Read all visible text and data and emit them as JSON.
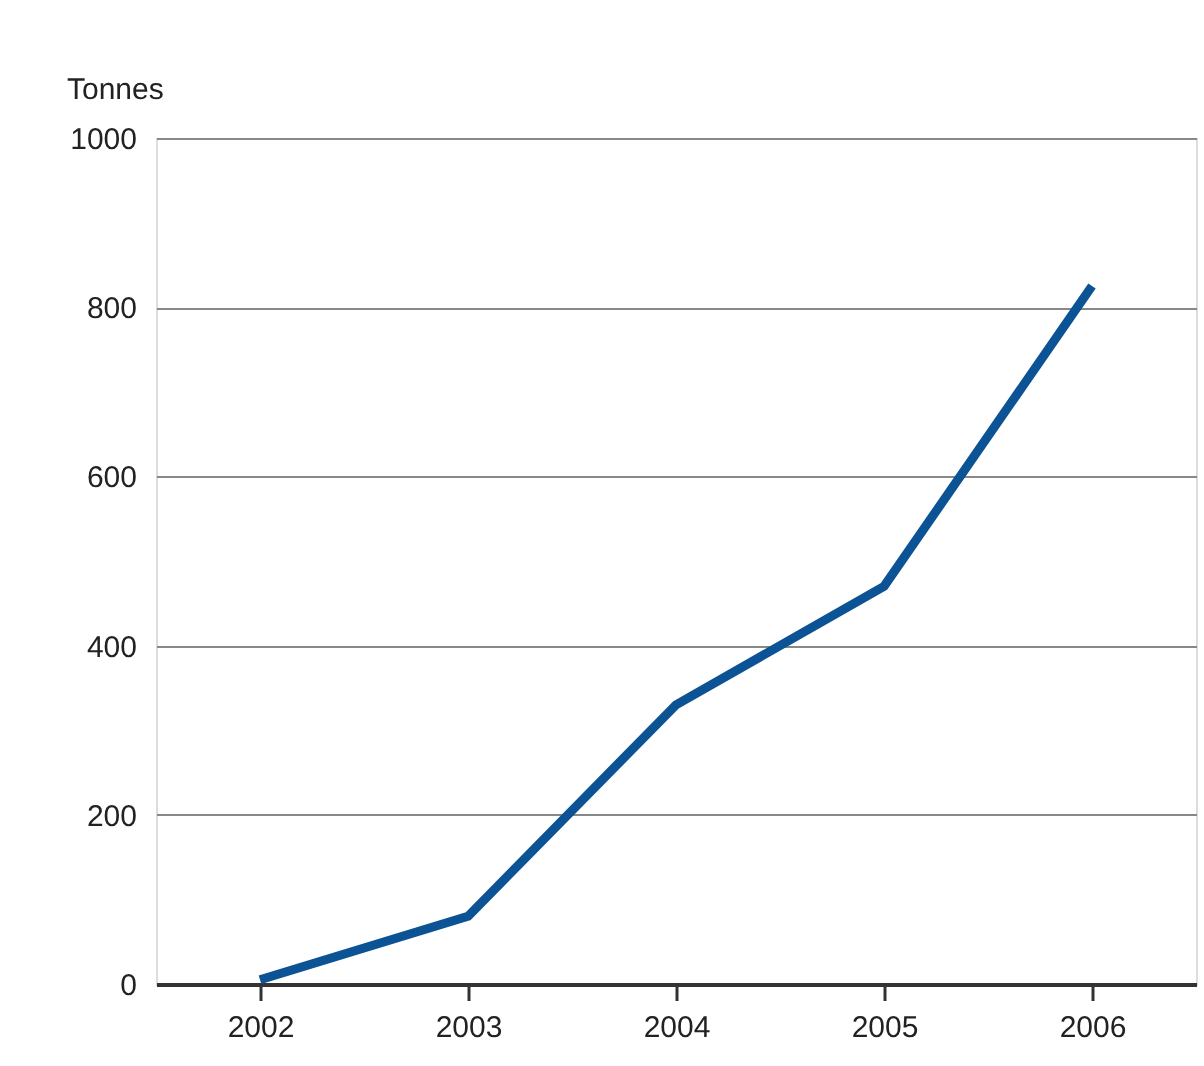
{
  "chart_data": {
    "type": "line",
    "ylabel": "Tonnes",
    "categories": [
      "2002",
      "2003",
      "2004",
      "2005",
      "2006"
    ],
    "series": [
      {
        "color": "#0b5394",
        "values": [
          5,
          80,
          330,
          470,
          825
        ]
      }
    ],
    "ylim": [
      0,
      1000
    ],
    "yticks": [
      0,
      200,
      400,
      600,
      800,
      1000
    ],
    "grid": "y",
    "marker": "none",
    "line_style": "solid"
  }
}
